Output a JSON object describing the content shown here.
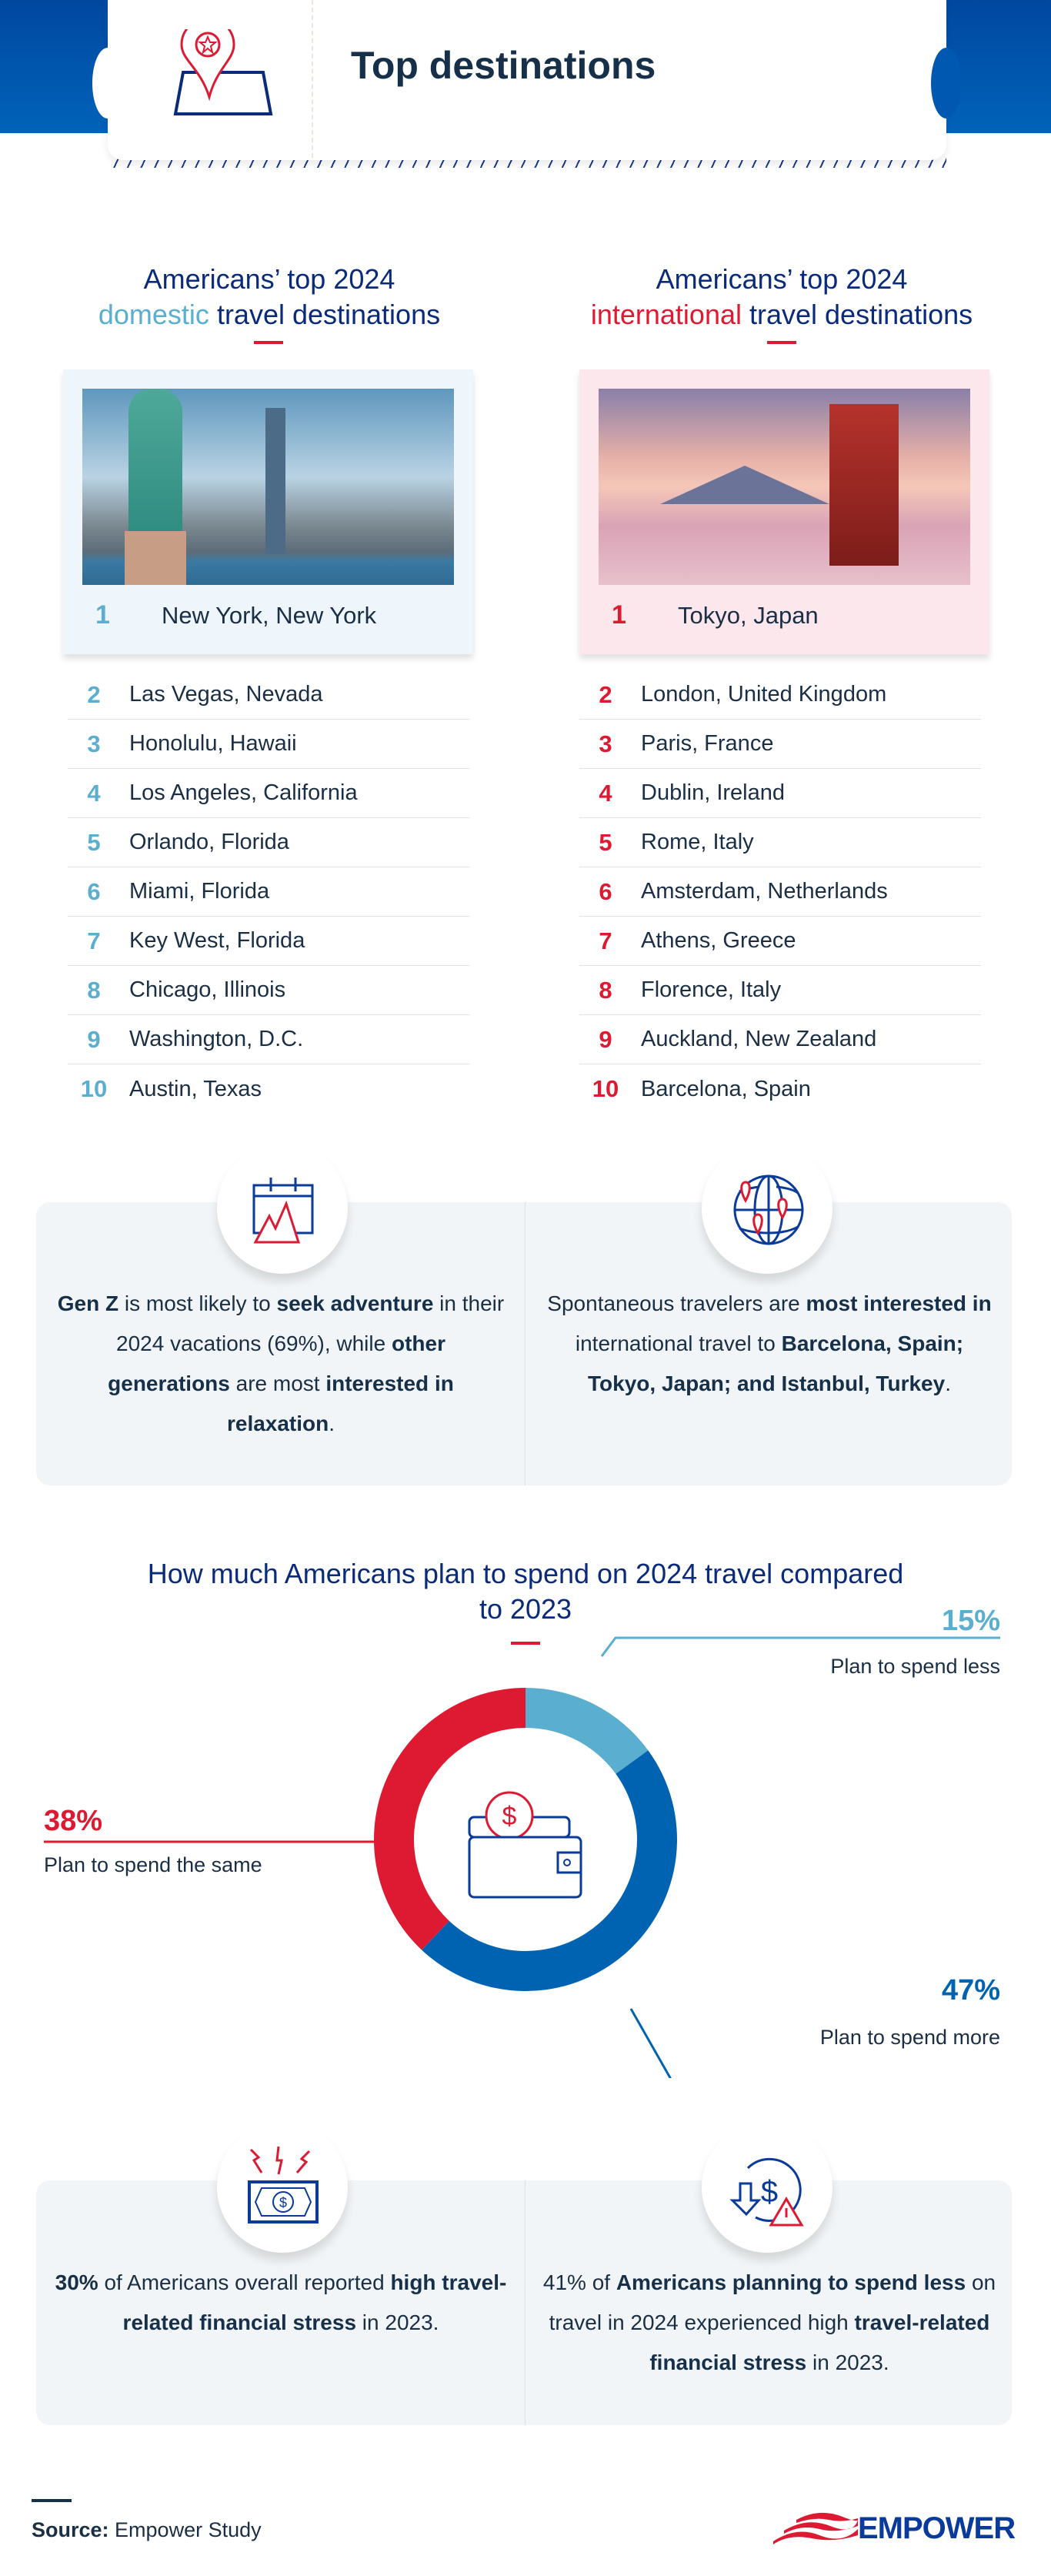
{
  "header": {
    "title": "Top destinations",
    "icon": "map-pin-star-icon"
  },
  "colors": {
    "navy": "#0a2a7a",
    "light_blue": "#5aaecf",
    "red": "#dd1a32",
    "blue": "#0063b2"
  },
  "domestic": {
    "title_line1": "Americans’ top 2024",
    "title_highlight": "domestic",
    "title_rest": " travel destinations",
    "featured": {
      "rank": "1",
      "city": "New York, New York"
    },
    "items": [
      {
        "rank": "2",
        "city": "Las Vegas, Nevada"
      },
      {
        "rank": "3",
        "city": "Honolulu, Hawaii"
      },
      {
        "rank": "4",
        "city": "Los Angeles, California"
      },
      {
        "rank": "5",
        "city": "Orlando, Florida"
      },
      {
        "rank": "6",
        "city": "Miami, Florida"
      },
      {
        "rank": "7",
        "city": "Key West, Florida"
      },
      {
        "rank": "8",
        "city": "Chicago, Illinois"
      },
      {
        "rank": "9",
        "city": "Washington, D.C."
      },
      {
        "rank": "10",
        "city": "Austin, Texas"
      }
    ]
  },
  "international": {
    "title_line1": "Americans’ top 2024",
    "title_highlight": "international",
    "title_rest": " travel destinations",
    "featured": {
      "rank": "1",
      "city": "Tokyo, Japan"
    },
    "items": [
      {
        "rank": "2",
        "city": "London, United Kingdom"
      },
      {
        "rank": "3",
        "city": "Paris, France"
      },
      {
        "rank": "4",
        "city": "Dublin, Ireland"
      },
      {
        "rank": "5",
        "city": "Rome, Italy"
      },
      {
        "rank": "6",
        "city": "Amsterdam, Netherlands"
      },
      {
        "rank": "7",
        "city": "Athens, Greece"
      },
      {
        "rank": "8",
        "city": "Florence, Italy"
      },
      {
        "rank": "9",
        "city": "Auckland, New Zealand"
      },
      {
        "rank": "10",
        "city": "Barcelona, Spain"
      }
    ]
  },
  "insights": [
    {
      "icon": "calendar-mountain-icon",
      "parts": [
        [
          "b",
          "Gen Z"
        ],
        [
          "t",
          " is most likely to "
        ],
        [
          "b",
          "seek adventure"
        ],
        [
          "t",
          " in their 2024 vacations (69%), while "
        ],
        [
          "b",
          "other generations"
        ],
        [
          "t",
          " are most "
        ],
        [
          "b",
          "interested in relaxation"
        ],
        [
          "t",
          "."
        ]
      ]
    },
    {
      "icon": "globe-pins-icon",
      "parts": [
        [
          "t",
          "Spontaneous travelers are "
        ],
        [
          "b",
          "most interested in"
        ],
        [
          "t",
          " international travel to "
        ],
        [
          "b",
          "Barcelona, Spain; Tokyo, Japan; and Istanbul, Turkey"
        ],
        [
          "t",
          "."
        ]
      ]
    }
  ],
  "chart_data": {
    "type": "pie",
    "title": "How much Americans plan to spend on 2024 travel compared to 2023",
    "slices": [
      {
        "label": "Plan to spend less",
        "value": 15,
        "display": "15%",
        "color": "#5aaecf"
      },
      {
        "label": "Plan to spend more",
        "value": 47,
        "display": "47%",
        "color": "#0063b2"
      },
      {
        "label": "Plan to spend the same",
        "value": 38,
        "display": "38%",
        "color": "#dd1a32"
      }
    ],
    "center_icon": "wallet-dollar-icon"
  },
  "stress": [
    {
      "icon": "money-stress-icon",
      "parts": [
        [
          "b",
          "30%"
        ],
        [
          "t",
          " of Americans overall reported "
        ],
        [
          "b",
          "high travel-related financial stress"
        ],
        [
          "t",
          " in 2023."
        ]
      ]
    },
    {
      "icon": "dollar-down-warning-icon",
      "parts": [
        [
          "t",
          "41% of "
        ],
        [
          "b",
          "Americans planning to spend less"
        ],
        [
          "t",
          " on travel in 2024 experienced high "
        ],
        [
          "b",
          "travel-related financial stress"
        ],
        [
          "t",
          " in 2023."
        ]
      ]
    }
  ],
  "footer": {
    "source_label": "Source:",
    "source_value": " Empower Study",
    "logo": "EMPOWER"
  }
}
